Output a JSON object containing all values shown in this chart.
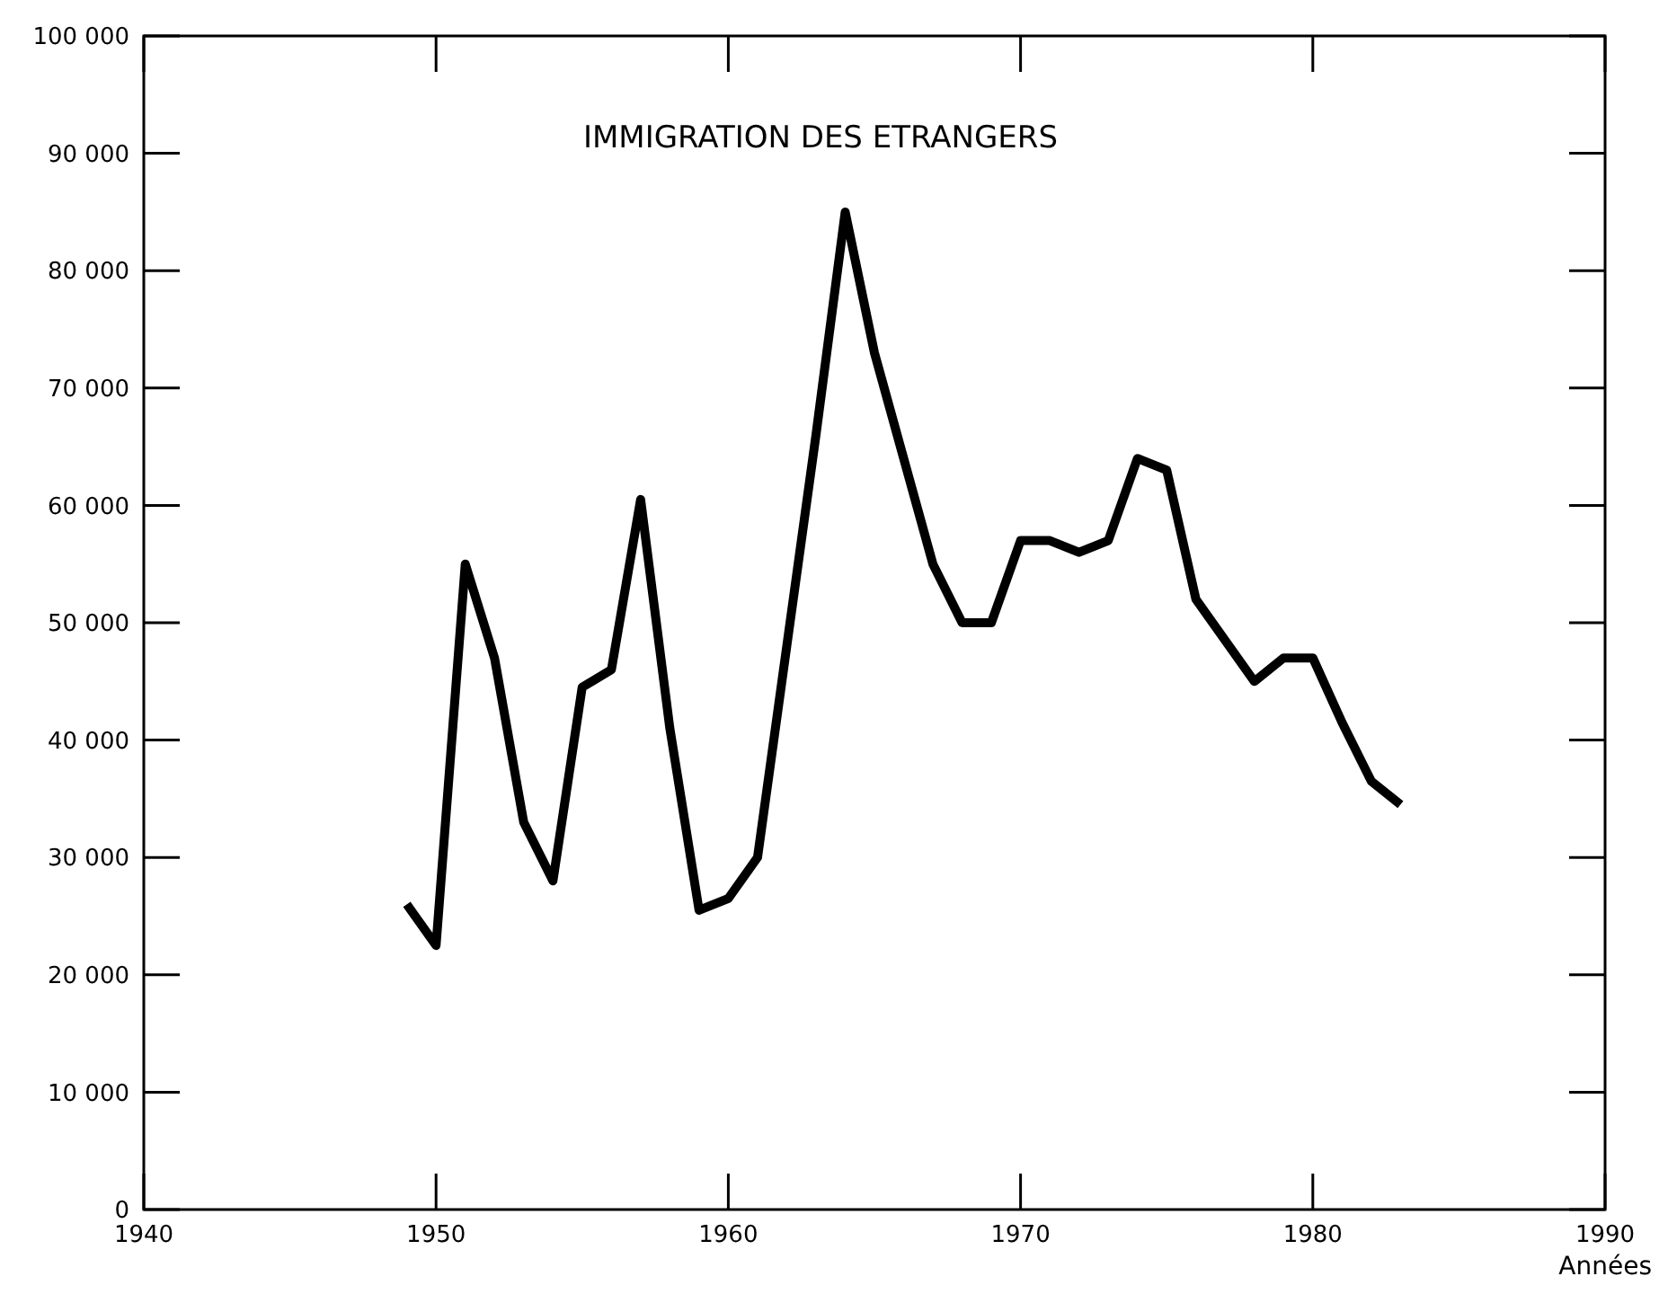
{
  "chart_data": {
    "type": "line",
    "title": "IMMIGRATION DES ETRANGERS",
    "xlabel": "Années",
    "x": [
      1949,
      1950,
      1951,
      1952,
      1953,
      1954,
      1955,
      1956,
      1957,
      1958,
      1959,
      1960,
      1961,
      1962,
      1963,
      1964,
      1965,
      1966,
      1967,
      1968,
      1969,
      1970,
      1971,
      1972,
      1973,
      1974,
      1975,
      1976,
      1977,
      1978,
      1979,
      1980,
      1981,
      1982,
      1983
    ],
    "series": [
      {
        "color": "#000000",
        "values": [
          26000,
          22500,
          55000,
          47000,
          33000,
          28000,
          44500,
          46000,
          60500,
          41000,
          25500,
          26500,
          30000,
          48000,
          66000,
          85000,
          73000,
          64000,
          55000,
          50000,
          50000,
          57000,
          57000,
          56000,
          57000,
          64000,
          63000,
          52000,
          48500,
          45000,
          47000,
          47000,
          41500,
          36500,
          34500
        ]
      }
    ],
    "xlim": [
      1940,
      1990
    ],
    "xticks": [
      1940,
      1950,
      1960,
      1970,
      1980,
      1990
    ],
    "ylim": [
      0,
      100000
    ],
    "yticks": [
      0,
      {
        "value": 10000,
        "label": "10 000"
      },
      {
        "value": 20000,
        "label": "20 000"
      },
      {
        "value": 30000,
        "label": "30 000"
      },
      {
        "value": 40000,
        "label": "40 000"
      },
      {
        "value": 50000,
        "label": "50 000"
      },
      {
        "value": 60000,
        "label": "60 000"
      },
      {
        "value": 70000,
        "label": "70 000"
      },
      {
        "value": 80000,
        "label": "80 000"
      },
      {
        "value": 90000,
        "label": "90 000"
      },
      {
        "value": 100000,
        "label": "100 000"
      }
    ],
    "grid": false,
    "line_style": "solid"
  }
}
